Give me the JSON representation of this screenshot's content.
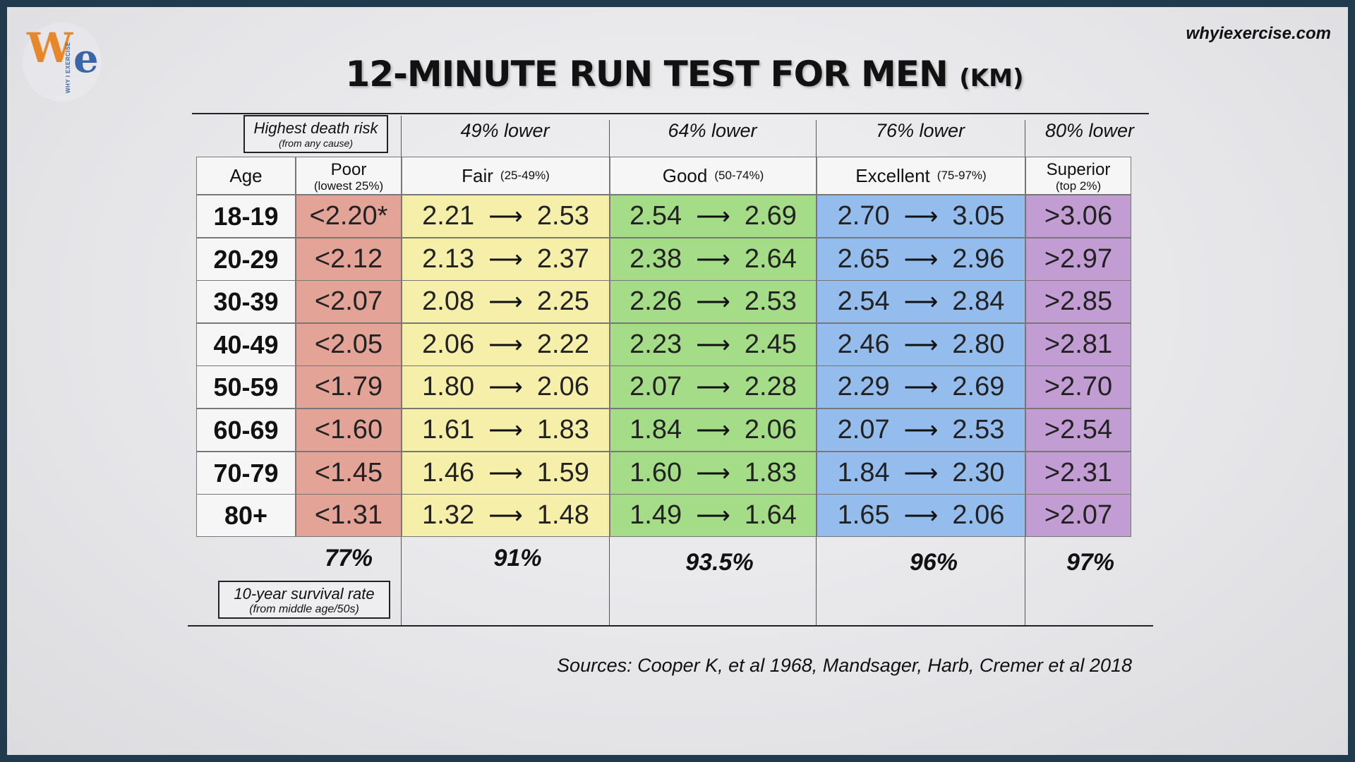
{
  "brand": {
    "logo_w": "W",
    "logo_e": "e",
    "logo_tagline": "WHY I EXERCISE",
    "site": "whyiexercise.com"
  },
  "title": {
    "main": "12-MINUTE RUN TEST FOR MEN",
    "unit": "(KM)"
  },
  "top_note": {
    "main": "Highest death risk",
    "sub": "(from any cause)"
  },
  "bands": [
    "49% lower",
    "64% lower",
    "76% lower",
    "80% lower"
  ],
  "age_header": "Age",
  "categories": [
    {
      "label": "Poor",
      "range": "(lowest 25%)"
    },
    {
      "label": "Fair",
      "range": "(25-49%)"
    },
    {
      "label": "Good",
      "range": "(50-74%)"
    },
    {
      "label": "Excellent",
      "range": "(75-97%)"
    },
    {
      "label": "Superior",
      "range": "(top 2%)"
    }
  ],
  "arrow": "⟶",
  "rows": [
    {
      "age": "18-19",
      "poor": "<2.20*",
      "fair": [
        "2.21",
        "2.53"
      ],
      "good": [
        "2.54",
        "2.69"
      ],
      "excellent": [
        "2.70",
        "3.05"
      ],
      "superior": ">3.06"
    },
    {
      "age": "20-29",
      "poor": "<2.12",
      "fair": [
        "2.13",
        "2.37"
      ],
      "good": [
        "2.38",
        "2.64"
      ],
      "excellent": [
        "2.65",
        "2.96"
      ],
      "superior": ">2.97"
    },
    {
      "age": "30-39",
      "poor": "<2.07",
      "fair": [
        "2.08",
        "2.25"
      ],
      "good": [
        "2.26",
        "2.53"
      ],
      "excellent": [
        "2.54",
        "2.84"
      ],
      "superior": ">2.85"
    },
    {
      "age": "40-49",
      "poor": "<2.05",
      "fair": [
        "2.06",
        "2.22"
      ],
      "good": [
        "2.23",
        "2.45"
      ],
      "excellent": [
        "2.46",
        "2.80"
      ],
      "superior": ">2.81"
    },
    {
      "age": "50-59",
      "poor": "<1.79",
      "fair": [
        "1.80",
        "2.06"
      ],
      "good": [
        "2.07",
        "2.28"
      ],
      "excellent": [
        "2.29",
        "2.69"
      ],
      "superior": ">2.70"
    },
    {
      "age": "60-69",
      "poor": "<1.60",
      "fair": [
        "1.61",
        "1.83"
      ],
      "good": [
        "1.84",
        "2.06"
      ],
      "excellent": [
        "2.07",
        "2.53"
      ],
      "superior": ">2.54"
    },
    {
      "age": "70-79",
      "poor": "<1.45",
      "fair": [
        "1.46",
        "1.59"
      ],
      "good": [
        "1.60",
        "1.83"
      ],
      "excellent": [
        "1.84",
        "2.30"
      ],
      "superior": ">2.31"
    },
    {
      "age": "80+",
      "poor": "<1.31",
      "fair": [
        "1.32",
        "1.48"
      ],
      "good": [
        "1.49",
        "1.64"
      ],
      "excellent": [
        "1.65",
        "2.06"
      ],
      "superior": ">2.07"
    }
  ],
  "survival": {
    "values": [
      "77%",
      "91%",
      "93.5%",
      "96%",
      "97%"
    ],
    "label_main": "10-year survival rate",
    "label_sub": "(from middle age/50s)"
  },
  "sources": "Sources:  Cooper K, et al 1968, Mandsager, Harb, Cremer et al 2018",
  "colors": {
    "poor": "#e3a397",
    "fair": "#f5efaa",
    "good": "#a5dc87",
    "excellent": "#94bcec",
    "superior": "#c29dd3",
    "frame": "#1f3b4d"
  },
  "chart_data": {
    "type": "table",
    "title": "12-MINUTE RUN TEST FOR MEN (KM)",
    "columns": [
      "Age",
      "Poor",
      "Fair",
      "Good",
      "Excellent",
      "Superior"
    ]
  }
}
